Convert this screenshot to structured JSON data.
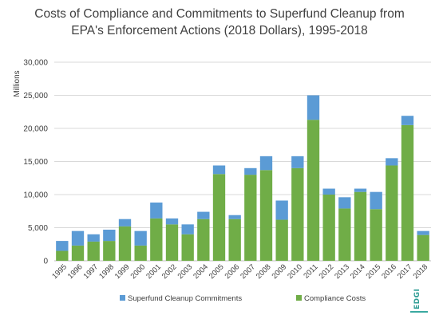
{
  "chart_data": {
    "type": "bar",
    "stacked": true,
    "title_lines": [
      "Costs of Compliance and Commitments to Superfund Cleanup from",
      "EPA's Enforcement Actions (2018 Dollars), 1995-2018"
    ],
    "ylabel": "Millions",
    "xlabel": "",
    "ylim": [
      0,
      30000
    ],
    "yticks": [
      0,
      5000,
      10000,
      15000,
      20000,
      25000,
      30000
    ],
    "ytick_labels": [
      "0",
      "5,000",
      "10,000",
      "15,000",
      "20,000",
      "25,000",
      "30,000"
    ],
    "grid": true,
    "legend_position": "bottom",
    "categories": [
      "1995",
      "1996",
      "1997",
      "1998",
      "1999",
      "2000",
      "2001",
      "2002",
      "2003",
      "2004",
      "2005",
      "2006",
      "2007",
      "2008",
      "2009",
      "2010",
      "2011",
      "2012",
      "2013",
      "2014",
      "2015",
      "2016",
      "2017",
      "2018"
    ],
    "series": [
      {
        "name": "Compliance Costs",
        "color": "#70ad47",
        "values": [
          1500,
          2300,
          2900,
          3000,
          5200,
          2300,
          6400,
          5500,
          4000,
          6300,
          13100,
          6300,
          13000,
          13700,
          6200,
          14000,
          21300,
          10000,
          7900,
          10400,
          7800,
          14400,
          20500,
          3900
        ]
      },
      {
        "name": "Superfund Cleanup Commitments",
        "color": "#5b9bd5",
        "values": [
          1500,
          2200,
          1100,
          1700,
          1100,
          2200,
          2400,
          900,
          1500,
          1100,
          1300,
          600,
          1000,
          2100,
          2900,
          1800,
          3700,
          900,
          1700,
          500,
          2600,
          1100,
          1400,
          600
        ]
      }
    ],
    "legend": [
      {
        "label": "Superfund Cleanup Commitments",
        "color": "#5b9bd5"
      },
      {
        "label": "Compliance Costs",
        "color": "#70ad47"
      }
    ]
  },
  "logo_text": "EDGI"
}
